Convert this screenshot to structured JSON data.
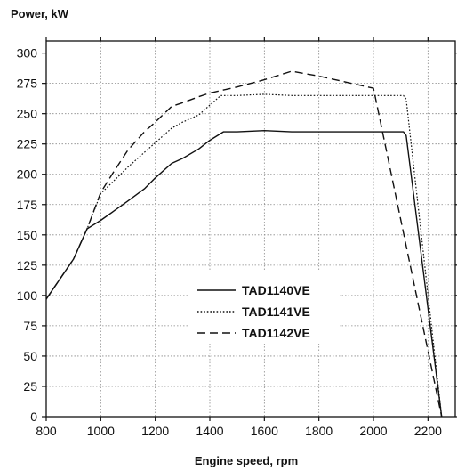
{
  "chart_data": {
    "type": "line",
    "ylabel": "Power, kW",
    "xlabel": "Engine speed, rpm",
    "xlim": [
      800,
      2300
    ],
    "ylim": [
      0,
      310
    ],
    "xticks": [
      800,
      1000,
      1200,
      1400,
      1600,
      1800,
      2000,
      2200
    ],
    "yticks": [
      0,
      25,
      50,
      75,
      100,
      125,
      150,
      175,
      200,
      225,
      250,
      275,
      300
    ],
    "grid": true,
    "legend_position": "center-right",
    "series": [
      {
        "name": "TAD1140VE",
        "dash": "solid",
        "x": [
          800,
          900,
          950,
          1000,
          1050,
          1100,
          1160,
          1200,
          1260,
          1300,
          1360,
          1400,
          1450,
          1500,
          1600,
          1700,
          1800,
          1900,
          2000,
          2050,
          2110,
          2120,
          2250
        ],
        "y": [
          97,
          130,
          155,
          162,
          170,
          178,
          188,
          197,
          209,
          213,
          221,
          228,
          235,
          235,
          236,
          235,
          235,
          235,
          235,
          235,
          235,
          232,
          0
        ]
      },
      {
        "name": "TAD1141VE",
        "dash": "dotted",
        "x": [
          800,
          900,
          950,
          1000,
          1050,
          1100,
          1160,
          1200,
          1260,
          1300,
          1360,
          1400,
          1440,
          1500,
          1600,
          1700,
          1800,
          1900,
          2000,
          2100,
          2110,
          2120,
          2250
        ],
        "y": [
          97,
          130,
          155,
          184,
          195,
          206,
          218,
          226,
          238,
          243,
          249,
          257,
          265,
          265,
          266,
          265,
          265,
          265,
          265,
          265,
          265,
          262,
          0
        ]
      },
      {
        "name": "TAD1142VE",
        "dash": "dashed",
        "x": [
          800,
          900,
          950,
          1000,
          1050,
          1100,
          1160,
          1200,
          1260,
          1300,
          1360,
          1400,
          1500,
          1600,
          1700,
          1800,
          1900,
          2000,
          2250
        ],
        "y": [
          97,
          130,
          155,
          185,
          203,
          220,
          235,
          243,
          256,
          259,
          264,
          267,
          272,
          278,
          285,
          281,
          276,
          271,
          0
        ]
      }
    ]
  }
}
